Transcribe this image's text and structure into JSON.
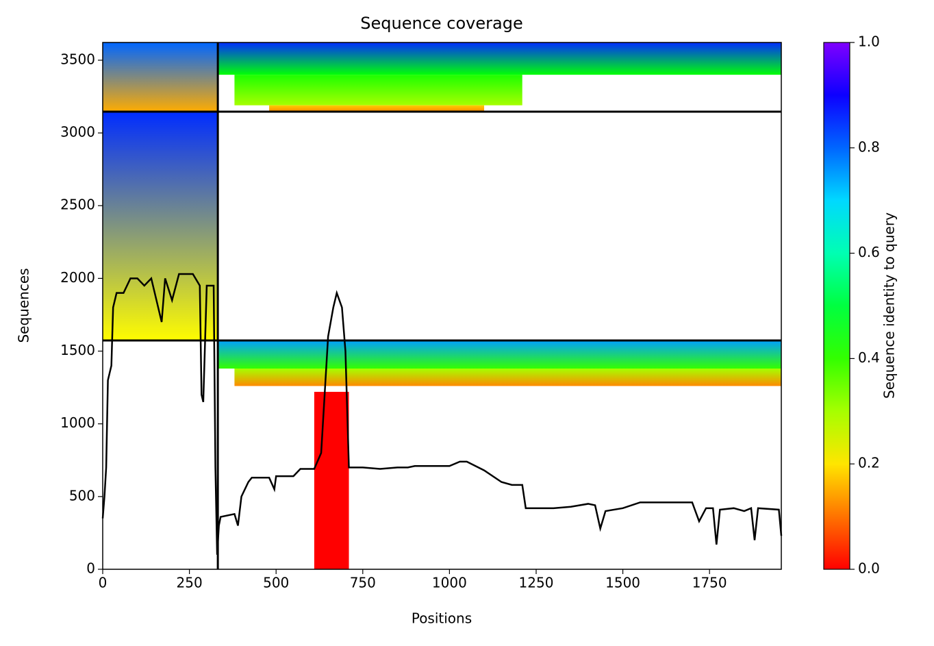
{
  "chart_data": {
    "type": "coverage",
    "title": "Sequence coverage",
    "xlabel": "Positions",
    "ylabel": "Sequences",
    "xlim": [
      0,
      1957
    ],
    "xticks": [
      0,
      250,
      500,
      750,
      1000,
      1250,
      1500,
      1750
    ],
    "ylim": [
      0,
      3622
    ],
    "yticks": [
      0,
      500,
      1000,
      1500,
      2000,
      2500,
      3000,
      3500
    ],
    "boundaries": {
      "x": [
        332
      ],
      "y": [
        1573,
        3146
      ]
    },
    "blocks": [
      {
        "x": [
          0,
          332
        ],
        "y": [
          3146,
          3622
        ],
        "identity": [
          0.15,
          0.8
        ]
      },
      {
        "x": [
          332,
          1957
        ],
        "y": [
          3400,
          3622
        ],
        "identity": [
          0.45,
          0.85
        ]
      },
      {
        "x": [
          380,
          1210
        ],
        "y": [
          3190,
          3400
        ],
        "identity": [
          0.3,
          0.42
        ]
      },
      {
        "x": [
          480,
          1100
        ],
        "y": [
          3146,
          3190
        ],
        "identity": [
          0.12,
          0.18
        ]
      },
      {
        "x": [
          0,
          332
        ],
        "y": [
          1573,
          3146
        ],
        "identity": [
          0.22,
          0.85
        ]
      },
      {
        "x": [
          332,
          1957
        ],
        "y": [
          1380,
          1573
        ],
        "identity": [
          0.4,
          0.75
        ]
      },
      {
        "x": [
          380,
          1957
        ],
        "y": [
          1260,
          1380
        ],
        "identity": [
          0.12,
          0.3
        ]
      },
      {
        "x": [
          610,
          710
        ],
        "y": [
          0,
          1220
        ],
        "identity": [
          0,
          0
        ]
      }
    ],
    "line_color": "#000000",
    "x": [
      0,
      5,
      10,
      15,
      20,
      25,
      30,
      40,
      60,
      80,
      100,
      120,
      140,
      170,
      180,
      200,
      220,
      260,
      280,
      285,
      290,
      300,
      320,
      325,
      330,
      335,
      340,
      380,
      390,
      400,
      420,
      430,
      480,
      495,
      500,
      550,
      570,
      610,
      630,
      640,
      650,
      665,
      675,
      690,
      700,
      710,
      750,
      800,
      850,
      880,
      900,
      1000,
      1030,
      1050,
      1100,
      1150,
      1180,
      1210,
      1220,
      1250,
      1300,
      1350,
      1400,
      1420,
      1435,
      1450,
      1500,
      1550,
      1700,
      1720,
      1740,
      1760,
      1770,
      1780,
      1820,
      1850,
      1870,
      1880,
      1890,
      1950,
      1957
    ],
    "values": [
      350,
      500,
      700,
      1300,
      1350,
      1400,
      1800,
      1900,
      1900,
      2000,
      2000,
      1950,
      2000,
      1700,
      2000,
      1850,
      2030,
      2030,
      1950,
      1200,
      1150,
      1950,
      1950,
      700,
      100,
      300,
      360,
      380,
      300,
      500,
      600,
      630,
      630,
      550,
      640,
      640,
      690,
      690,
      800,
      1200,
      1600,
      1800,
      1900,
      1800,
      1500,
      700,
      700,
      690,
      700,
      700,
      710,
      710,
      740,
      740,
      680,
      600,
      580,
      580,
      420,
      420,
      420,
      430,
      450,
      440,
      280,
      400,
      420,
      460,
      460,
      330,
      420,
      420,
      170,
      410,
      420,
      400,
      420,
      200,
      420,
      410,
      230
    ],
    "colorbar": {
      "label": "Sequence identity to query",
      "clim": [
        0,
        1
      ],
      "ticks": [
        {
          "value": 0,
          "label": "0.0"
        },
        0.2,
        0.4,
        0.6,
        0.8,
        {
          "value": 1,
          "label": "1.0"
        }
      ]
    }
  }
}
